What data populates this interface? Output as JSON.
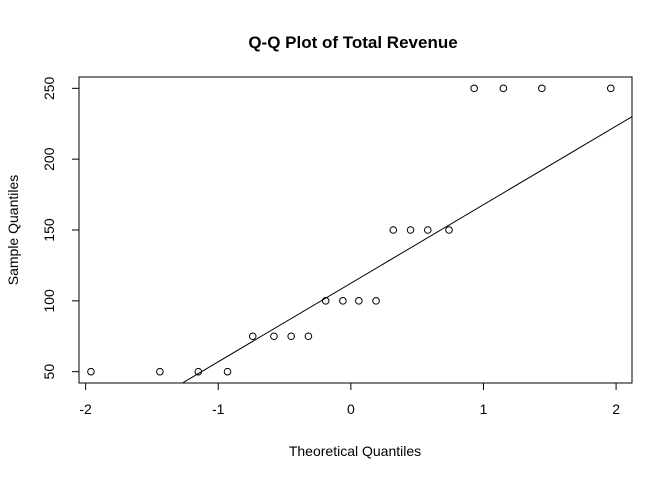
{
  "chart_data": {
    "type": "scatter",
    "title": "Q-Q Plot of Total Revenue",
    "xlabel": "Theoretical Quantiles",
    "ylabel": "Sample Quantiles",
    "xlim": [
      -2.05,
      2.12
    ],
    "ylim": [
      42,
      258
    ],
    "x_ticks": [
      -2,
      -1,
      0,
      1,
      2
    ],
    "y_ticks": [
      50,
      100,
      150,
      200,
      250
    ],
    "grid": false,
    "points": [
      {
        "x": -1.96,
        "y": 50
      },
      {
        "x": -1.44,
        "y": 50
      },
      {
        "x": -1.15,
        "y": 50
      },
      {
        "x": -0.93,
        "y": 50
      },
      {
        "x": -0.74,
        "y": 75
      },
      {
        "x": -0.58,
        "y": 75
      },
      {
        "x": -0.45,
        "y": 75
      },
      {
        "x": -0.32,
        "y": 75
      },
      {
        "x": -0.19,
        "y": 100
      },
      {
        "x": -0.06,
        "y": 100
      },
      {
        "x": 0.06,
        "y": 100
      },
      {
        "x": 0.19,
        "y": 100
      },
      {
        "x": 0.32,
        "y": 150
      },
      {
        "x": 0.45,
        "y": 150
      },
      {
        "x": 0.58,
        "y": 150
      },
      {
        "x": 0.74,
        "y": 150
      },
      {
        "x": 0.93,
        "y": 250
      },
      {
        "x": 1.15,
        "y": 250
      },
      {
        "x": 1.44,
        "y": 250
      },
      {
        "x": 1.96,
        "y": 250
      }
    ],
    "reference_line": {
      "x1": -1.27,
      "y1": 42,
      "x2": 2.12,
      "y2": 230
    }
  }
}
